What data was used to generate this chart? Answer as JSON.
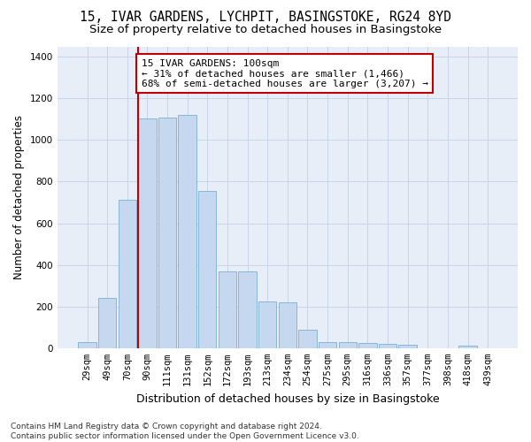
{
  "title": "15, IVAR GARDENS, LYCHPIT, BASINGSTOKE, RG24 8YD",
  "subtitle": "Size of property relative to detached houses in Basingstoke",
  "xlabel": "Distribution of detached houses by size in Basingstoke",
  "ylabel": "Number of detached properties",
  "categories": [
    "29sqm",
    "49sqm",
    "70sqm",
    "90sqm",
    "111sqm",
    "131sqm",
    "152sqm",
    "172sqm",
    "193sqm",
    "213sqm",
    "234sqm",
    "254sqm",
    "275sqm",
    "295sqm",
    "316sqm",
    "336sqm",
    "357sqm",
    "377sqm",
    "398sqm",
    "418sqm",
    "439sqm"
  ],
  "values": [
    30,
    240,
    715,
    1105,
    1110,
    1120,
    755,
    370,
    370,
    225,
    220,
    90,
    30,
    30,
    25,
    20,
    15,
    0,
    0,
    10,
    0
  ],
  "bar_color": "#c5d8ef",
  "bar_edge_color": "#7bafd4",
  "vline_x_index": 3,
  "vline_color": "#c00000",
  "vline_label": "15 IVAR GARDENS: 100sqm",
  "annot_line2": "← 31% of detached houses are smaller (1,466)",
  "annot_line3": "68% of semi-detached houses are larger (3,207) →",
  "annotation_bbox_edgecolor": "#c00000",
  "ylim": [
    0,
    1450
  ],
  "yticks": [
    0,
    200,
    400,
    600,
    800,
    1000,
    1200,
    1400
  ],
  "footnote": "Contains HM Land Registry data © Crown copyright and database right 2024.\nContains public sector information licensed under the Open Government Licence v3.0.",
  "background_color": "#ffffff",
  "plot_bg_color": "#e8eef8",
  "grid_color": "#c8d4e8",
  "title_fontsize": 10.5,
  "subtitle_fontsize": 9.5,
  "xlabel_fontsize": 9,
  "ylabel_fontsize": 8.5,
  "tick_fontsize": 7.5,
  "annot_fontsize": 8,
  "footnote_fontsize": 6.5
}
